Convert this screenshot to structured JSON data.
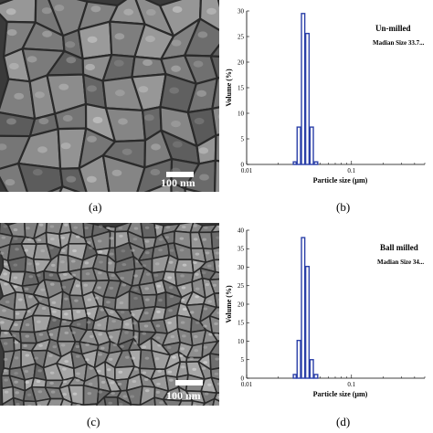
{
  "captions": {
    "a": "(a)",
    "b": "(b)",
    "c": "(c)",
    "d": "(d)"
  },
  "sem_images": [
    {
      "scale_label": "100 nm",
      "texture": "large-cracked-grains"
    },
    {
      "scale_label": "100 nm",
      "texture": "fine-grains"
    }
  ],
  "colors": {
    "bar_stroke": "#2a3fa8",
    "sem_base_top": "#6b6b6b",
    "sem_base_bottom": "#7a7a7a"
  },
  "chart_data": [
    {
      "type": "bar",
      "xscale": "log",
      "xlim": [
        0.01,
        0.5
      ],
      "ylim": [
        0,
        30
      ],
      "yticks": [
        0,
        5,
        10,
        15,
        20,
        25,
        30
      ],
      "xtick_labels": [
        "0.01",
        "0.1"
      ],
      "xlabel": "Particle size (µm)",
      "ylabel": "Volume (%)",
      "title": "Un-milled",
      "subtitle": "Madian Size 33.7...",
      "bars": [
        {
          "x0": 0.0276,
          "x1": 0.03,
          "y": 0.5
        },
        {
          "x0": 0.03,
          "x1": 0.033,
          "y": 7.3
        },
        {
          "x0": 0.033,
          "x1": 0.0362,
          "y": 29.5
        },
        {
          "x0": 0.0362,
          "x1": 0.0398,
          "y": 25.6
        },
        {
          "x0": 0.0398,
          "x1": 0.0437,
          "y": 7.3
        },
        {
          "x0": 0.0437,
          "x1": 0.0481,
          "y": 0.5
        }
      ]
    },
    {
      "type": "bar",
      "xscale": "log",
      "xlim": [
        0.01,
        0.5
      ],
      "ylim": [
        0,
        40
      ],
      "yticks": [
        0,
        5,
        10,
        15,
        20,
        25,
        30,
        35,
        40
      ],
      "xtick_labels": [
        "0.01",
        "0.1"
      ],
      "xlabel": "Particle size (µm)",
      "ylabel": "Volume (%)",
      "title": "Ball milled",
      "subtitle": "Madian Size 34...",
      "bars": [
        {
          "x0": 0.0276,
          "x1": 0.03,
          "y": 1.0
        },
        {
          "x0": 0.03,
          "x1": 0.033,
          "y": 10.2
        },
        {
          "x0": 0.033,
          "x1": 0.0362,
          "y": 38.0
        },
        {
          "x0": 0.0362,
          "x1": 0.0398,
          "y": 30.2
        },
        {
          "x0": 0.0398,
          "x1": 0.0437,
          "y": 5.0
        },
        {
          "x0": 0.0437,
          "x1": 0.0481,
          "y": 1.0
        }
      ]
    }
  ]
}
